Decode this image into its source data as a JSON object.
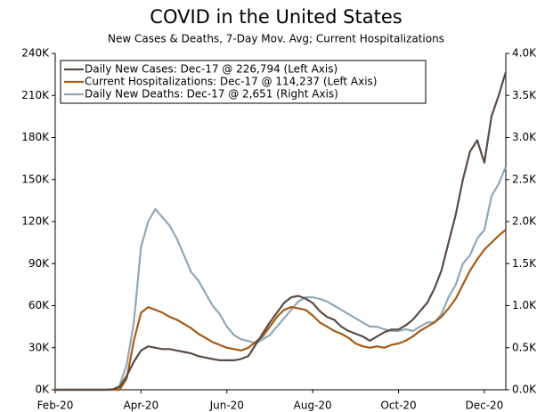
{
  "chart_data": {
    "type": "line",
    "title": "COVID in the United States",
    "subtitle": "New Cases & Deaths, 7-Day Mov. Avg; Current Hospitalizations",
    "categories": [
      "Feb-20",
      null,
      null,
      null,
      null,
      null,
      null,
      null,
      null,
      null,
      null,
      null,
      "Apr-20",
      null,
      null,
      null,
      null,
      null,
      null,
      null,
      null,
      null,
      null,
      null,
      "Jun-20",
      null,
      null,
      null,
      null,
      null,
      null,
      null,
      null,
      null,
      null,
      null,
      "Aug-20",
      null,
      null,
      null,
      null,
      null,
      null,
      null,
      null,
      null,
      null,
      null,
      "Oct-20",
      null,
      null,
      null,
      null,
      null,
      null,
      null,
      null,
      null,
      null,
      null,
      "Dec-20",
      null,
      null,
      null
    ],
    "ylim": [
      0,
      240000
    ],
    "yticks": [
      {
        "value": 0,
        "label": "0K"
      },
      {
        "value": 30000,
        "label": "30K"
      },
      {
        "value": 60000,
        "label": "60K"
      },
      {
        "value": 90000,
        "label": "90K"
      },
      {
        "value": 120000,
        "label": "120K"
      },
      {
        "value": 150000,
        "label": "150K"
      },
      {
        "value": 180000,
        "label": "180K"
      },
      {
        "value": 210000,
        "label": "210K"
      },
      {
        "value": 240000,
        "label": "240K"
      }
    ],
    "y2lim": [
      0,
      4000
    ],
    "y2ticks": [
      {
        "value": 0,
        "label": "0.0K"
      },
      {
        "value": 500,
        "label": "0.5K"
      },
      {
        "value": 1000,
        "label": "1.0K"
      },
      {
        "value": 1500,
        "label": "1.5K"
      },
      {
        "value": 2000,
        "label": "2.0K"
      },
      {
        "value": 2500,
        "label": "2.5K"
      },
      {
        "value": 3000,
        "label": "3.0K"
      },
      {
        "value": 3500,
        "label": "3.5K"
      },
      {
        "value": 4000,
        "label": "4.0K"
      }
    ],
    "legend": "upper left",
    "series": [
      {
        "name": "Daily New Cases: Dec-17 @ 226,794 (Left Axis)",
        "color": "#5b4b44",
        "values": [
          0,
          0,
          0,
          0,
          0,
          0,
          0,
          0,
          300,
          2000,
          10000,
          20000,
          28000,
          31000,
          30000,
          29000,
          29000,
          28000,
          27000,
          26000,
          24000,
          23000,
          22000,
          21000,
          21000,
          21000,
          22000,
          24000,
          32000,
          40000,
          48000,
          55000,
          62000,
          66000,
          67000,
          65000,
          62000,
          56000,
          52000,
          50000,
          45000,
          42000,
          40000,
          38000,
          35000,
          38000,
          41000,
          43000,
          43000,
          46000,
          50000,
          56000,
          62000,
          72000,
          85000,
          105000,
          125000,
          150000,
          170000,
          178000,
          162000,
          195000,
          210000,
          226794
        ]
      },
      {
        "name": "Current Hospitalizations: Dec-17 @ 114,237 (Left Axis)",
        "color": "#a55a15",
        "values": [
          0,
          0,
          0,
          0,
          0,
          0,
          0,
          0,
          0,
          0,
          8000,
          35000,
          55000,
          59000,
          57000,
          55000,
          52000,
          50000,
          47000,
          44000,
          40000,
          37000,
          34000,
          32000,
          30000,
          29000,
          28000,
          30000,
          34000,
          38000,
          45000,
          52000,
          57000,
          59000,
          58000,
          57000,
          53000,
          48000,
          45000,
          42000,
          40000,
          37000,
          33000,
          31000,
          30000,
          31000,
          30000,
          32000,
          33000,
          35000,
          38000,
          42000,
          45000,
          48000,
          52000,
          58000,
          65000,
          75000,
          85000,
          93000,
          100000,
          105000,
          110000,
          114237
        ]
      },
      {
        "name": "Daily New Deaths: Dec-17 @ 2,651 (Right Axis)",
        "color": "#8fa8b8",
        "axis": "y2",
        "values": [
          0,
          0,
          0,
          0,
          0,
          0,
          0,
          0,
          0,
          50,
          300,
          800,
          1700,
          2000,
          2150,
          2050,
          1950,
          1800,
          1600,
          1400,
          1300,
          1150,
          1000,
          900,
          750,
          650,
          600,
          580,
          550,
          600,
          650,
          750,
          850,
          950,
          1050,
          1100,
          1100,
          1080,
          1050,
          1000,
          950,
          900,
          850,
          800,
          750,
          750,
          720,
          700,
          700,
          720,
          700,
          750,
          800,
          800,
          900,
          1100,
          1250,
          1500,
          1600,
          1800,
          1900,
          2300,
          2450,
          2651
        ]
      }
    ]
  }
}
